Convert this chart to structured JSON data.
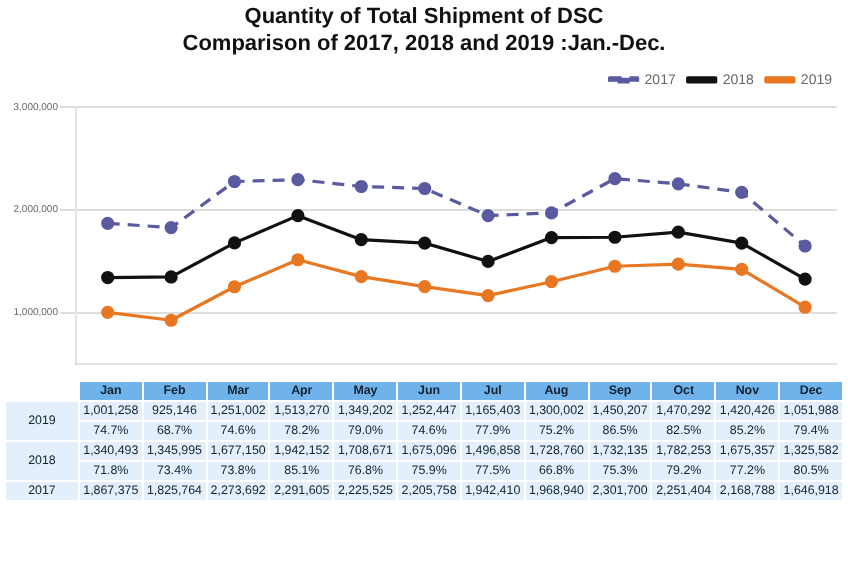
{
  "chart_data": {
    "type": "line",
    "title": "Quantity of Total Shipment of DSC",
    "subtitle": "Comparison of 2017, 2018 and 2019 :Jan.-Dec.",
    "categories": [
      "Jan",
      "Feb",
      "Mar",
      "Apr",
      "May",
      "Jun",
      "Jul",
      "Aug",
      "Sep",
      "Oct",
      "Nov",
      "Dec"
    ],
    "series": [
      {
        "name": "2017",
        "color": "#5a5aa0",
        "line_style": "dashed",
        "values": [
          1867375,
          1825764,
          2273692,
          2291605,
          2225525,
          2205758,
          1942410,
          1968940,
          2301700,
          2251404,
          2168788,
          1646918
        ],
        "value_labels": [
          "1,867,375",
          "1,825,764",
          "2,273,692",
          "2,291,605",
          "2,225,525",
          "2,205,758",
          "1,942,410",
          "1,968,940",
          "2,301,700",
          "2,251,404",
          "2,168,788",
          "1,646,918"
        ]
      },
      {
        "name": "2018",
        "color": "#111111",
        "values": [
          1340493,
          1345995,
          1677150,
          1942152,
          1708671,
          1675096,
          1496858,
          1728760,
          1732135,
          1782253,
          1675357,
          1325582
        ],
        "value_labels": [
          "1,340,493",
          "1,345,995",
          "1,677,150",
          "1,942,152",
          "1,708,671",
          "1,675,096",
          "1,496,858",
          "1,728,760",
          "1,732,135",
          "1,782,253",
          "1,675,357",
          "1,325,582"
        ]
      },
      {
        "name": "2019",
        "color": "#e87722",
        "values": [
          1001258,
          925146,
          1251002,
          1513270,
          1349202,
          1252447,
          1165403,
          1300002,
          1450207,
          1470292,
          1420426,
          1051988
        ],
        "value_labels": [
          "1,001,258",
          "925,146",
          "1,251,002",
          "1,513,270",
          "1,349,202",
          "1,252,447",
          "1,165,403",
          "1,300,002",
          "1,450,207",
          "1,470,292",
          "1,420,426",
          "1,051,988"
        ]
      }
    ],
    "ylim": [
      500000,
      3000000
    ],
    "yticks": [
      {
        "value": 1000000,
        "label": "1,000,000"
      },
      {
        "value": 2000000,
        "label": "2,000,000"
      },
      {
        "value": 3000000,
        "label": "3,000,000"
      }
    ],
    "grid": "y",
    "legend": "top right",
    "marker": "circle",
    "annotations": [
      "74.7%",
      "68.7%",
      "74.6%",
      "78.2%",
      "79.0%",
      "74.6%",
      "77.9%",
      "75.2%",
      "86.5%",
      "82.5%",
      "85.2%",
      "79.4%",
      "71.8%",
      "73.4%",
      "73.8%",
      "85.1%",
      "76.8%",
      "75.9%",
      "77.5%",
      "66.8%",
      "75.3%",
      "79.2%",
      "77.2%",
      "80.5%"
    ]
  }
}
